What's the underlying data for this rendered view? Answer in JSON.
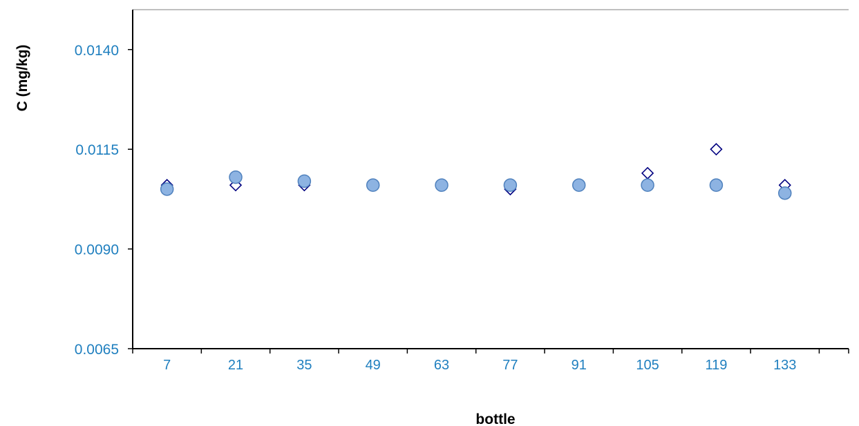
{
  "chart_data": {
    "type": "scatter",
    "title": "",
    "xlabel": "bottle",
    "ylabel": "C (mg/kg)",
    "x": [
      7,
      21,
      35,
      49,
      63,
      77,
      91,
      105,
      119,
      133
    ],
    "x_tick_labels": [
      "7",
      "21",
      "35",
      "49",
      "63",
      "77",
      "91",
      "105",
      "119",
      "133"
    ],
    "y_tick_labels": [
      "0.0065",
      "0.0090",
      "0.0115",
      "0.0140"
    ],
    "y_ticks": [
      0.0065,
      0.009,
      0.0115,
      0.014
    ],
    "ylim": [
      0.0065,
      0.015
    ],
    "xlim": [
      0,
      146
    ],
    "grid": false,
    "legend": "none",
    "series": [
      {
        "marker": "circle",
        "color": "#8db3e2",
        "edge_color": "#4f81bd",
        "values": [
          0.0105,
          0.0108,
          0.0107,
          0.0106,
          0.0106,
          0.0106,
          0.0106,
          0.0106,
          0.0106,
          0.0104
        ]
      },
      {
        "marker": "diamond",
        "color": "#ffffff",
        "edge_color": "#000080",
        "values": [
          0.0106,
          0.0106,
          0.0106,
          0.0106,
          0.0106,
          0.0105,
          null,
          0.0109,
          0.0115,
          0.0106
        ]
      }
    ],
    "colors": {
      "tick_text": "#1f7fbf",
      "axis_title": "#1f3fbf",
      "axis_line": "#000000",
      "frame_top": "#bfbfbf"
    }
  }
}
